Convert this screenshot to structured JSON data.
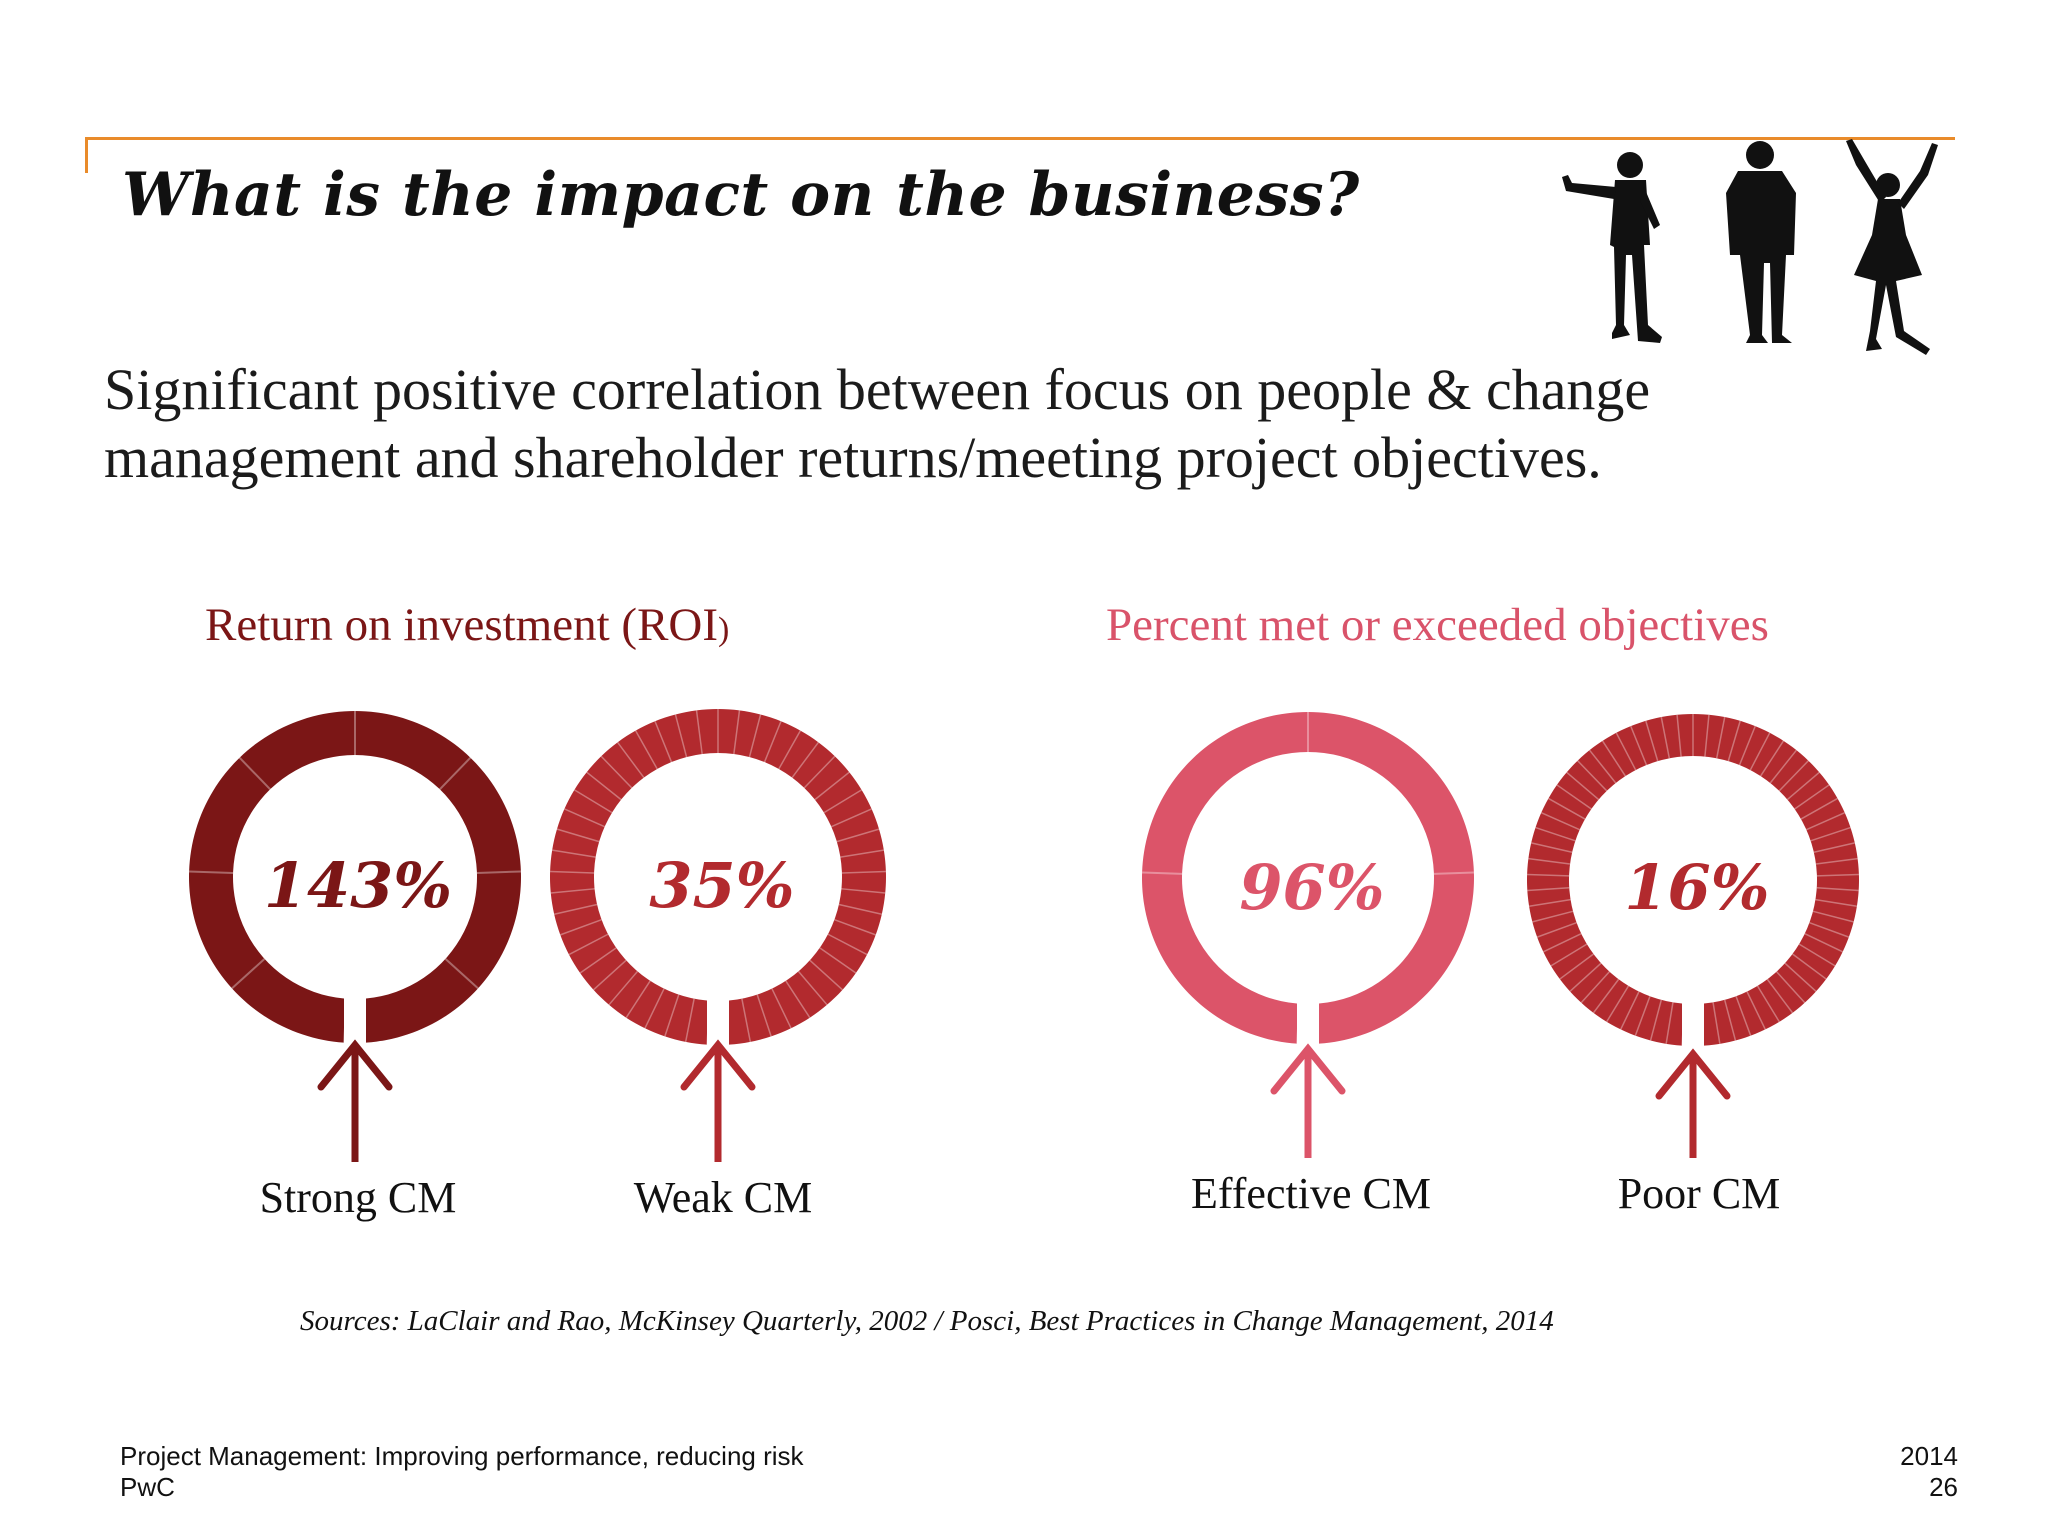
{
  "slide": {
    "title": "What is the impact on the business?",
    "subtitle": "Significant positive correlation between focus on people & change management and shareholder returns/meeting project objectives."
  },
  "sections": {
    "roi": {
      "title_main": "Return on investment (ROI",
      "title_paren": ")",
      "color": "#7b1616"
    },
    "objectives": {
      "title": "Percent met or exceeded objectives",
      "color": "#d9536a"
    }
  },
  "rings": [
    {
      "value": "143%",
      "label": "Strong CM",
      "color": "#7b1616",
      "segments": 8
    },
    {
      "value": "35%",
      "label": "Weak CM",
      "color": "#b22a2e",
      "segments": 48
    },
    {
      "value": "96%",
      "label": "Effective CM",
      "color": "#dc5469",
      "segments": 4
    },
    {
      "value": "16%",
      "label": "Poor CM",
      "color": "#b22a2e",
      "segments": 64
    }
  ],
  "sources": "Sources: LaClair and Rao, McKinsey Quarterly, 2002 / Posci, Best Practices in Change Management, 2014",
  "footer": {
    "left_line1": "Project Management: Improving performance, reducing risk",
    "left_line2": "PwC",
    "right_line1": "2014",
    "right_line2": "26"
  },
  "decoration": {
    "image": "silhouettes-of-three-people"
  },
  "colors": {
    "accent_line": "#e98b2a"
  }
}
